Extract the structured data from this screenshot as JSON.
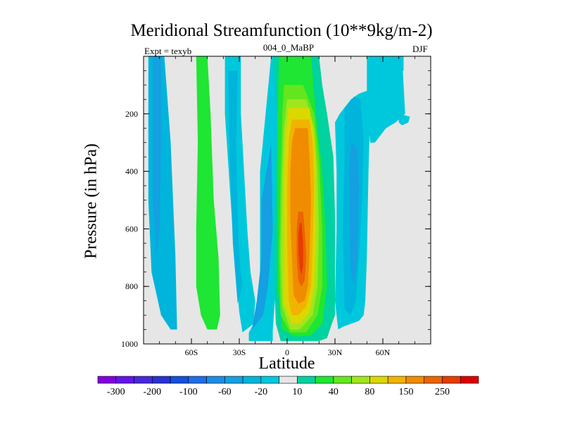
{
  "chart_data": {
    "type": "heatmap",
    "subtype": "filled-contour",
    "title": "Meridional Streamfunction (10**9kg/m-2)",
    "subtitle_left": "Expt = texyb",
    "subtitle_center": "004_0_MaBP",
    "subtitle_right": "DJF",
    "xlabel": "Latitude",
    "ylabel": "Pressure (in hPa)",
    "xlim": [
      -90,
      90
    ],
    "ylim": [
      1000,
      0
    ],
    "x_ticks": [
      {
        "value": -60,
        "label": "60S"
      },
      {
        "value": -30,
        "label": "30S"
      },
      {
        "value": 0,
        "label": "0"
      },
      {
        "value": 30,
        "label": "30N"
      },
      {
        "value": 60,
        "label": "60N"
      }
    ],
    "y_ticks": [
      {
        "value": 200,
        "label": "200"
      },
      {
        "value": 400,
        "label": "400"
      },
      {
        "value": 600,
        "label": "600"
      },
      {
        "value": 800,
        "label": "800"
      },
      {
        "value": 1000,
        "label": "1000"
      }
    ],
    "contour_levels": [
      -300,
      -250,
      -200,
      -150,
      -100,
      -80,
      -60,
      -40,
      -20,
      -10,
      10,
      20,
      40,
      60,
      80,
      100,
      150,
      200,
      250,
      300
    ],
    "colorbar_labels": [
      "-300",
      "-200",
      "-100",
      "-60",
      "-20",
      "10",
      "40",
      "80",
      "150",
      "250"
    ],
    "colors": {
      "background": "#e6e6e6",
      "bins": [
        "#8200dc",
        "#6414e6",
        "#4628dc",
        "#2832d2",
        "#1450dc",
        "#1e6ee6",
        "#1e8ce6",
        "#14a0e1",
        "#00b4dc",
        "#00c8dc",
        "#e6e6e6",
        "#00d2a0",
        "#1ee632",
        "#64e61e",
        "#a0e61e",
        "#dcd700",
        "#f0b400",
        "#f08c00",
        "#eb6400",
        "#e63c00",
        "#dc0000"
      ]
    },
    "regions": [
      {
        "name": "south-polar-cell",
        "color": "#00b4dc",
        "points": [
          [
            -87,
            0
          ],
          [
            -77,
            0
          ],
          [
            -73,
            300
          ],
          [
            -70,
            700
          ],
          [
            -69,
            950
          ],
          [
            -73,
            950
          ],
          [
            -79,
            900
          ],
          [
            -85,
            750
          ],
          [
            -87,
            500
          ]
        ]
      },
      {
        "name": "south-polar-cell-core",
        "color": "#14a0e1",
        "points": [
          [
            -84,
            0
          ],
          [
            -79,
            0
          ],
          [
            -79,
            300
          ],
          [
            -80,
            600
          ],
          [
            -82,
            700
          ],
          [
            -84,
            500
          ]
        ]
      },
      {
        "name": "southern-ferrel-cell",
        "color": "#1ee632",
        "points": [
          [
            -57,
            0
          ],
          [
            -50,
            0
          ],
          [
            -48,
            200
          ],
          [
            -46,
            500
          ],
          [
            -43,
            700
          ],
          [
            -42,
            900
          ],
          [
            -44,
            950
          ],
          [
            -50,
            950
          ],
          [
            -54,
            900
          ],
          [
            -57,
            800
          ],
          [
            -57,
            600
          ],
          [
            -56,
            300
          ]
        ]
      },
      {
        "name": "southern-hadley-outer",
        "color": "#00c8dc",
        "points": [
          [
            -39,
            0
          ],
          [
            -29,
            0
          ],
          [
            -29,
            200
          ],
          [
            -27,
            400
          ],
          [
            -25,
            600
          ],
          [
            -23,
            750
          ],
          [
            -20,
            850
          ],
          [
            -21,
            930
          ],
          [
            -28,
            960
          ],
          [
            -30,
            890
          ],
          [
            -33,
            700
          ],
          [
            -36,
            450
          ],
          [
            -39,
            200
          ]
        ]
      },
      {
        "name": "southern-hadley-inner",
        "color": "#00b4dc",
        "points": [
          [
            -37,
            50
          ],
          [
            -31,
            50
          ],
          [
            -32,
            300
          ],
          [
            -31,
            550
          ],
          [
            -30,
            700
          ],
          [
            -28,
            800
          ],
          [
            -31,
            860
          ],
          [
            -34,
            650
          ],
          [
            -36,
            350
          ]
        ]
      },
      {
        "name": "equatorial-band-blue",
        "color": "#00c8dc",
        "points": [
          [
            -17,
            400
          ],
          [
            -10,
            0
          ],
          [
            -6,
            0
          ],
          [
            -6,
            400
          ],
          [
            -5,
            700
          ],
          [
            -7,
            800
          ],
          [
            -9,
            950
          ],
          [
            -9,
            990
          ],
          [
            -24,
            990
          ],
          [
            -24,
            960
          ],
          [
            -21,
            930
          ],
          [
            -17,
            800
          ],
          [
            -17,
            500
          ]
        ]
      },
      {
        "name": "equatorial-band-blue-2",
        "color": "#14a0e1",
        "points": [
          [
            -16,
            500
          ],
          [
            -10,
            300
          ],
          [
            -9,
            600
          ],
          [
            -12,
            800
          ],
          [
            -15,
            900
          ],
          [
            -22,
            950
          ],
          [
            -19,
            850
          ],
          [
            -16,
            700
          ]
        ]
      },
      {
        "name": "main-cell-10",
        "color": "#00d2a0",
        "points": [
          [
            -9,
            0
          ],
          [
            -1,
            0
          ],
          [
            20,
            0
          ],
          [
            22,
            100
          ],
          [
            25,
            200
          ],
          [
            29,
            350
          ],
          [
            30,
            550
          ],
          [
            30,
            900
          ],
          [
            28,
            930
          ],
          [
            25,
            980
          ],
          [
            20,
            990
          ],
          [
            8,
            990
          ],
          [
            -4,
            990
          ],
          [
            -7,
            930
          ],
          [
            -8,
            800
          ],
          [
            -8,
            600
          ],
          [
            -7,
            400
          ],
          [
            -6,
            200
          ]
        ]
      },
      {
        "name": "main-cell-20",
        "color": "#1ee632",
        "points": [
          [
            -5,
            0
          ],
          [
            15,
            0
          ],
          [
            18,
            200
          ],
          [
            22,
            400
          ],
          [
            24,
            600
          ],
          [
            25,
            800
          ],
          [
            22,
            930
          ],
          [
            15,
            970
          ],
          [
            5,
            975
          ],
          [
            -3,
            950
          ],
          [
            -6,
            800
          ],
          [
            -6,
            600
          ],
          [
            -6,
            400
          ],
          [
            -6,
            200
          ]
        ]
      },
      {
        "name": "main-cell-40",
        "color": "#64e61e",
        "points": [
          [
            -2,
            100
          ],
          [
            10,
            100
          ],
          [
            17,
            200
          ],
          [
            20,
            350
          ],
          [
            22,
            600
          ],
          [
            22,
            800
          ],
          [
            19,
            900
          ],
          [
            12,
            960
          ],
          [
            2,
            960
          ],
          [
            -4,
            900
          ],
          [
            -5,
            700
          ],
          [
            -4,
            400
          ],
          [
            -3,
            200
          ]
        ]
      },
      {
        "name": "main-cell-60",
        "color": "#a0e61e",
        "points": [
          [
            0,
            150
          ],
          [
            12,
            150
          ],
          [
            17,
            250
          ],
          [
            19,
            400
          ],
          [
            20,
            600
          ],
          [
            19,
            800
          ],
          [
            16,
            900
          ],
          [
            8,
            950
          ],
          [
            2,
            950
          ],
          [
            -3,
            870
          ],
          [
            -4,
            700
          ],
          [
            -3,
            400
          ],
          [
            -2,
            250
          ]
        ]
      },
      {
        "name": "main-cell-80",
        "color": "#dcd700",
        "points": [
          [
            1,
            180
          ],
          [
            14,
            180
          ],
          [
            17,
            280
          ],
          [
            18,
            400
          ],
          [
            18,
            650
          ],
          [
            17,
            800
          ],
          [
            14,
            890
          ],
          [
            8,
            930
          ],
          [
            3,
            930
          ],
          [
            -2,
            860
          ],
          [
            -2,
            650
          ],
          [
            -2,
            400
          ],
          [
            -1,
            270
          ]
        ]
      },
      {
        "name": "main-cell-100",
        "color": "#f0b400",
        "points": [
          [
            3,
            220
          ],
          [
            14,
            220
          ],
          [
            16,
            300
          ],
          [
            17,
            450
          ],
          [
            16,
            650
          ],
          [
            15,
            800
          ],
          [
            12,
            870
          ],
          [
            7,
            900
          ],
          [
            3,
            900
          ],
          [
            1,
            850
          ],
          [
            0,
            650
          ],
          [
            0,
            450
          ],
          [
            1,
            290
          ]
        ]
      },
      {
        "name": "main-cell-150",
        "color": "#f08c00",
        "points": [
          [
            5,
            250
          ],
          [
            13,
            250
          ],
          [
            14,
            350
          ],
          [
            15,
            500
          ],
          [
            14,
            700
          ],
          [
            13,
            800
          ],
          [
            11,
            850
          ],
          [
            7,
            860
          ],
          [
            4,
            830
          ],
          [
            3,
            700
          ],
          [
            2,
            550
          ],
          [
            2,
            400
          ],
          [
            3,
            300
          ]
        ]
      },
      {
        "name": "main-cell-200",
        "color": "#eb6400",
        "points": [
          [
            7,
            540
          ],
          [
            10,
            540
          ],
          [
            11,
            600
          ],
          [
            12,
            700
          ],
          [
            11,
            780
          ],
          [
            9,
            800
          ],
          [
            7,
            780
          ],
          [
            6,
            700
          ],
          [
            6,
            600
          ]
        ]
      },
      {
        "name": "main-cell-250",
        "color": "#e63c00",
        "points": [
          [
            8,
            580
          ],
          [
            9,
            580
          ],
          [
            10,
            650
          ],
          [
            10,
            730
          ],
          [
            9,
            760
          ],
          [
            8,
            740
          ],
          [
            7,
            680
          ],
          [
            7,
            620
          ]
        ]
      },
      {
        "name": "northern-hadley-outer",
        "color": "#00c8dc",
        "points": [
          [
            30,
            230
          ],
          [
            33,
            200
          ],
          [
            40,
            150
          ],
          [
            45,
            130
          ],
          [
            50,
            120
          ],
          [
            52,
            200
          ],
          [
            51,
            400
          ],
          [
            50,
            700
          ],
          [
            49,
            850
          ],
          [
            48,
            900
          ],
          [
            45,
            920
          ],
          [
            40,
            930
          ],
          [
            35,
            940
          ],
          [
            32,
            950
          ],
          [
            30,
            850
          ],
          [
            31,
            600
          ],
          [
            31,
            400
          ]
        ]
      },
      {
        "name": "northern-hadley-mid",
        "color": "#00b4dc",
        "points": [
          [
            36,
            180
          ],
          [
            42,
            140
          ],
          [
            46,
            150
          ],
          [
            48,
            300
          ],
          [
            47,
            500
          ],
          [
            45,
            700
          ],
          [
            43,
            850
          ],
          [
            40,
            900
          ],
          [
            36,
            880
          ],
          [
            35,
            600
          ],
          [
            36,
            350
          ]
        ]
      },
      {
        "name": "northern-hadley-core",
        "color": "#14a0e1",
        "points": [
          [
            40,
            300
          ],
          [
            44,
            320
          ],
          [
            45,
            450
          ],
          [
            44,
            700
          ],
          [
            42,
            800
          ],
          [
            40,
            750
          ],
          [
            39,
            550
          ],
          [
            39,
            400
          ]
        ]
      },
      {
        "name": "northern-ferrel-cell",
        "color": "#00c8dc",
        "points": [
          [
            50,
            0
          ],
          [
            72,
            0
          ],
          [
            73,
            100
          ],
          [
            74,
            200
          ],
          [
            68,
            230
          ],
          [
            62,
            250
          ],
          [
            55,
            300
          ],
          [
            52,
            300
          ],
          [
            50,
            150
          ]
        ]
      },
      {
        "name": "northern-ferrel-cell-patch",
        "color": "#00c8dc",
        "points": [
          [
            50,
            0
          ],
          [
            73,
            0
          ],
          [
            73,
            50
          ],
          [
            62,
            60
          ],
          [
            51,
            50
          ]
        ]
      },
      {
        "name": "northern-ferrel-tail",
        "color": "#00c8dc",
        "points": [
          [
            70,
            200
          ],
          [
            77,
            210
          ],
          [
            76,
            230
          ],
          [
            72,
            240
          ],
          [
            70,
            230
          ]
        ]
      }
    ]
  }
}
